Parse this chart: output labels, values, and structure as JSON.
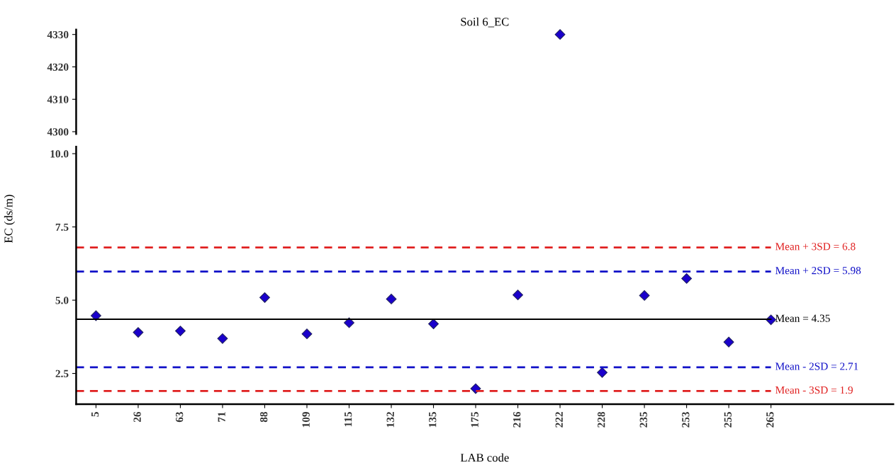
{
  "chart_data": [
    {
      "type": "scatter",
      "title": "Soil 6_EC",
      "categories": [
        "5",
        "26",
        "63",
        "71",
        "88",
        "109",
        "115",
        "132",
        "135",
        "175",
        "216",
        "222",
        "228",
        "235",
        "253",
        "255",
        "265"
      ],
      "series": [
        {
          "color": "#1a00cc",
          "values": [
            null,
            null,
            null,
            null,
            null,
            null,
            null,
            null,
            null,
            null,
            null,
            4330,
            null,
            null,
            null,
            null,
            null
          ]
        }
      ],
      "marker": "diamond",
      "ylim": [
        4299.3,
        4331.5
      ],
      "yticks": [
        4300,
        4310,
        4320,
        4330
      ],
      "tick_labels": "y",
      "grid": false,
      "legend": false
    },
    {
      "type": "scatter",
      "xlabel": "LAB code",
      "ylabel": "EC (ds/m)",
      "categories": [
        "5",
        "26",
        "63",
        "71",
        "88",
        "109",
        "115",
        "132",
        "135",
        "175",
        "216",
        "222",
        "228",
        "235",
        "253",
        "255",
        "265"
      ],
      "series": [
        {
          "color": "#1a00cc",
          "values": [
            4.47,
            3.9,
            3.95,
            3.69,
            5.09,
            3.85,
            4.23,
            5.04,
            4.19,
            1.98,
            5.18,
            null,
            2.53,
            5.16,
            5.74,
            3.57,
            4.33
          ]
        }
      ],
      "marker": "diamond",
      "ylim": [
        1.45,
        10.24
      ],
      "yticks": [
        {
          "value": 2.5,
          "label": "2.5"
        },
        {
          "value": 5,
          "label": "5.0"
        },
        {
          "value": 7.5,
          "label": "7.5"
        },
        {
          "value": 10,
          "label": "10.0"
        }
      ],
      "grid": false,
      "legend": false,
      "ref_lines": [
        {
          "axis": "y",
          "value": 6.8,
          "label": "Mean + 3SD = 6.8",
          "color": "#e02020",
          "line_style": "dashed"
        },
        {
          "axis": "y",
          "value": 5.98,
          "label": "Mean + 2SD = 5.98",
          "color": "#1010c8",
          "line_style": "dashed"
        },
        {
          "axis": "y",
          "value": 4.35,
          "label": "Mean = 4.35",
          "color": "#000000",
          "line_style": "solid"
        },
        {
          "axis": "y",
          "value": 2.71,
          "label": "Mean - 2SD = 2.71",
          "color": "#1010c8",
          "line_style": "dashed"
        },
        {
          "axis": "y",
          "value": 1.9,
          "label": "Mean - 3SD = 1.9",
          "color": "#e02020",
          "line_style": "dashed"
        }
      ]
    }
  ]
}
